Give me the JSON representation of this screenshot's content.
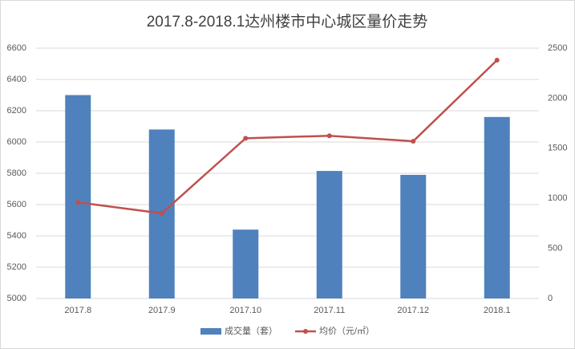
{
  "chart_data": {
    "type": "bar-line",
    "title": "2017.8-2018.1达州楼市中心城区量价走势",
    "categories": [
      "2017.8",
      "2017.9",
      "2017.10",
      "2017.11",
      "2017.12",
      "2018.1"
    ],
    "series": [
      {
        "name": "成交量（套）",
        "type": "bar",
        "color": "#4f81bd",
        "values": [
          6300,
          6080,
          5440,
          5815,
          5790,
          6160
        ]
      },
      {
        "name": "均价（元/㎡）",
        "type": "line",
        "axis": "y2",
        "color": "#c0504d",
        "values": [
          960,
          850,
          1600,
          1625,
          1570,
          2380
        ]
      }
    ],
    "ylim": [
      5000,
      6600
    ],
    "yticks": [
      5000,
      5200,
      5400,
      5600,
      5800,
      6000,
      6200,
      6400,
      6600
    ],
    "y2lim": [
      0,
      2500
    ],
    "y2ticks": [
      0,
      500,
      1000,
      1500,
      2000,
      2500
    ],
    "grid": true,
    "legend": "bottom"
  }
}
